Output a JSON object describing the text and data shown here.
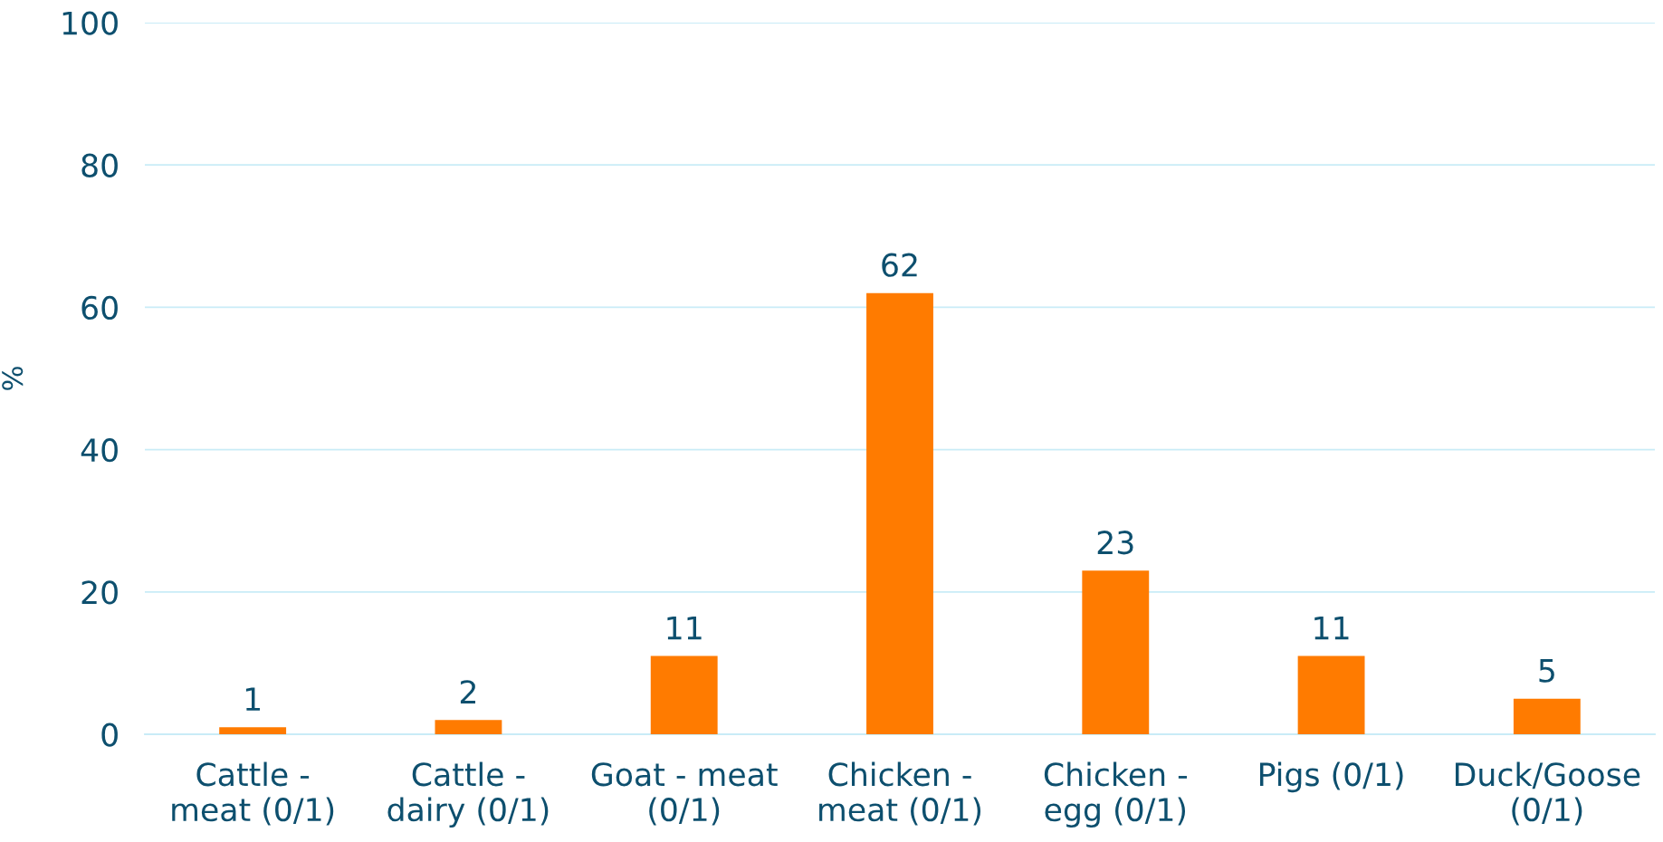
{
  "chart_data": {
    "type": "bar",
    "ylabel": "%",
    "categories": [
      "Cattle - meat (0/1)",
      "Cattle - dairy (0/1)",
      "Goat - meat (0/1)",
      "Chicken - meat (0/1)",
      "Chicken - egg (0/1)",
      "Pigs (0/1)",
      "Duck/Goose (0/1)"
    ],
    "values": [
      1,
      2,
      11,
      62,
      23,
      11,
      5
    ],
    "color": "#ff7b00",
    "ylim": [
      0,
      100
    ],
    "yticks": [
      0,
      20,
      40,
      60,
      80,
      100
    ],
    "grid": "y",
    "data_labels": true
  }
}
